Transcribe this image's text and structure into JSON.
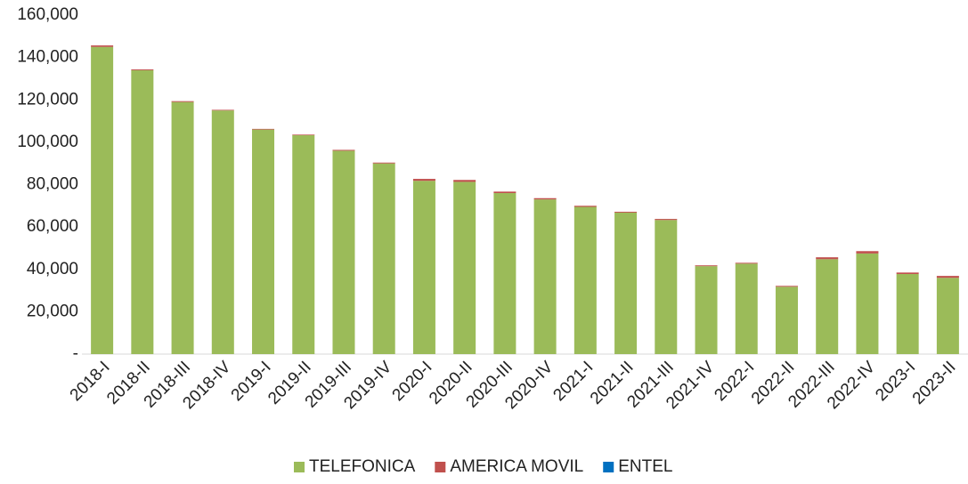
{
  "chart_data": {
    "type": "stacked_bar",
    "categories": [
      "2018-I",
      "2018-II",
      "2018-III",
      "2018-IV",
      "2019-I",
      "2019-II",
      "2019-III",
      "2019-IV",
      "2020-I",
      "2020-II",
      "2020-III",
      "2020-IV",
      "2021-I",
      "2021-II",
      "2021-III",
      "2021-IV",
      "2022-I",
      "2022-II",
      "2022-III",
      "2022-IV",
      "2023-I",
      "2023-II"
    ],
    "series": [
      {
        "name": "TELEFONICA",
        "color": "#9bbb59",
        "values": [
          145000,
          134000,
          119000,
          115000,
          106000,
          103300,
          96000,
          90000,
          81800,
          81300,
          76000,
          73000,
          69500,
          66800,
          63300,
          41500,
          42700,
          31800,
          44800,
          47500,
          37800,
          36000
        ]
      },
      {
        "name": "AMERICA MOVIL",
        "color": "#c0504d",
        "values": [
          700,
          400,
          400,
          300,
          300,
          300,
          400,
          400,
          900,
          900,
          700,
          600,
          500,
          400,
          500,
          400,
          400,
          400,
          900,
          1100,
          700,
          900
        ]
      },
      {
        "name": "ENTEL",
        "color": "#0070c0",
        "values": [
          0,
          0,
          0,
          0,
          0,
          0,
          0,
          0,
          0,
          0,
          0,
          0,
          0,
          0,
          0,
          0,
          0,
          0,
          0,
          0,
          0,
          0
        ]
      }
    ],
    "ylim": [
      0,
      160000
    ],
    "yticks": [
      {
        "value": 0,
        "label": "-"
      },
      {
        "value": 20000,
        "label": "20,000"
      },
      {
        "value": 40000,
        "label": "40,000"
      },
      {
        "value": 60000,
        "label": "60,000"
      },
      {
        "value": 80000,
        "label": "80,000"
      },
      {
        "value": 100000,
        "label": "100,000"
      },
      {
        "value": 120000,
        "label": "120,000"
      },
      {
        "value": 140000,
        "label": "140,000"
      },
      {
        "value": 160000,
        "label": "160,000"
      }
    ],
    "legend": "bottom"
  }
}
